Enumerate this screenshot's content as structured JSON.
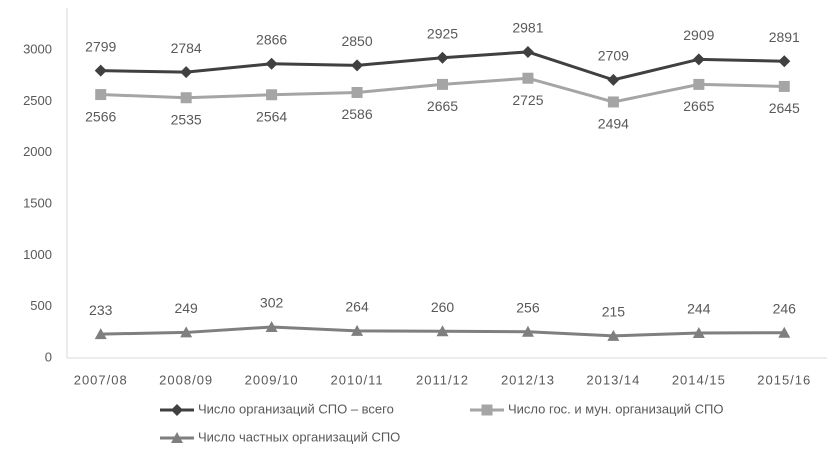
{
  "chart_data": {
    "type": "line",
    "categories": [
      "2007/08",
      "2008/09",
      "2009/10",
      "2010/11",
      "2011/12",
      "2012/13",
      "2013/14",
      "2014/15",
      "2015/16"
    ],
    "series": [
      {
        "name": "Число организаций СПО – всего",
        "color": "#404040",
        "marker": "diamond",
        "label_position": "above",
        "values": [
          2799,
          2784,
          2866,
          2850,
          2925,
          2981,
          2709,
          2909,
          2891
        ]
      },
      {
        "name": "Число гос. и мун. организаций СПО",
        "color": "#a5a5a5",
        "marker": "square",
        "label_position": "below",
        "values": [
          2566,
          2535,
          2564,
          2586,
          2665,
          2725,
          2494,
          2665,
          2645
        ]
      },
      {
        "name": "Число частных организаций СПО",
        "color": "#7f7f7f",
        "marker": "triangle",
        "label_position": "above",
        "values": [
          233,
          249,
          302,
          264,
          260,
          256,
          215,
          244,
          246
        ]
      }
    ],
    "ylim": [
      0,
      3000
    ],
    "yticks": [
      0,
      500,
      1000,
      1500,
      2000,
      2500,
      3000
    ],
    "grid": false
  }
}
